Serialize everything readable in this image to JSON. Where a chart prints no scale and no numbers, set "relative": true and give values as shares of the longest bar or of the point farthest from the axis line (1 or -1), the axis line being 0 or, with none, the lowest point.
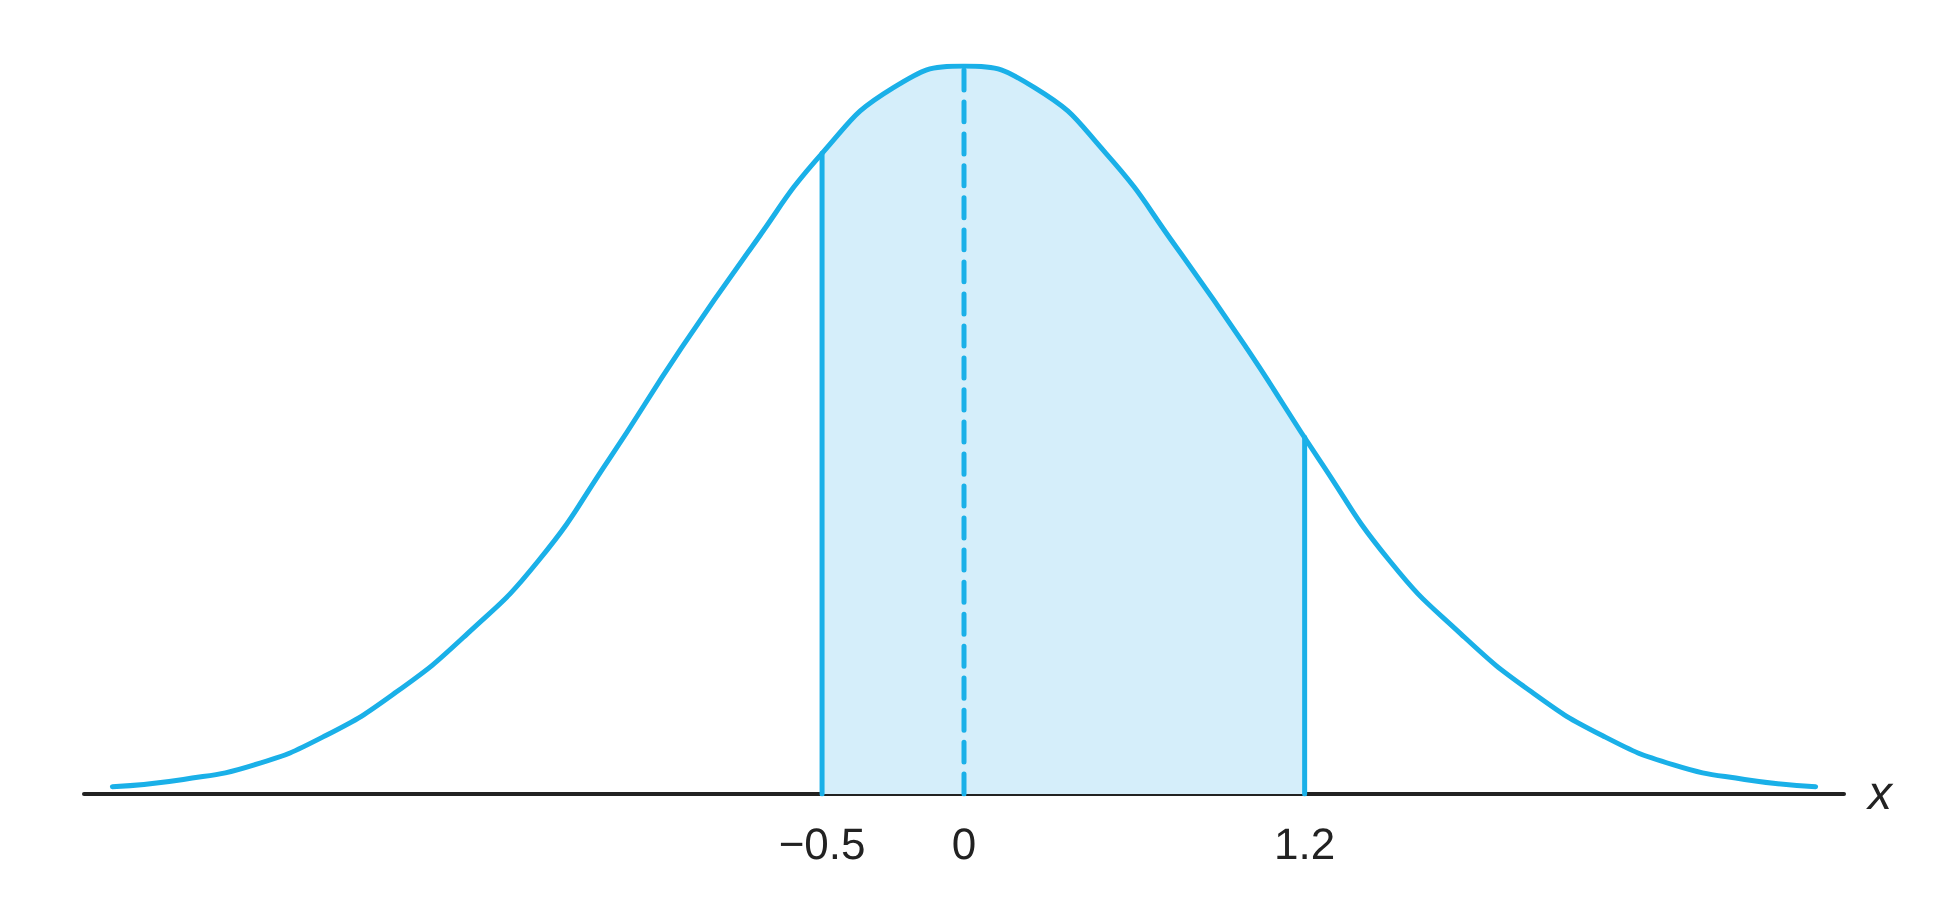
{
  "chart_data": {
    "type": "line",
    "relative": true,
    "xlabel": "x",
    "xlim": [
      -3.1,
      3.1
    ],
    "xticks": [
      -0.5,
      0,
      1.2
    ],
    "marker": "none",
    "x": [
      -3,
      -2.75,
      -2.5,
      -2.25,
      -2,
      -1.75,
      -1.5,
      -1.25,
      -1,
      -0.75,
      -0.5,
      -0.25,
      0,
      0.25,
      0.5,
      0.75,
      1,
      1.25,
      1.5,
      1.75,
      2,
      2.25,
      2.5,
      2.75,
      3
    ],
    "series": [
      {
        "color": "#1ab0e8",
        "values": [
          0.01,
          0.02,
          0.04,
          0.08,
          0.14,
          0.22,
          0.32,
          0.46,
          0.61,
          0.75,
          0.88,
          0.97,
          1,
          0.97,
          0.88,
          0.75,
          0.61,
          0.46,
          0.32,
          0.22,
          0.14,
          0.08,
          0.04,
          0.02,
          0.01
        ]
      },
      {
        "type": "area",
        "color": "#d5eefa",
        "x": [
          -0.5,
          -0.25,
          0,
          0.25,
          0.5,
          0.75,
          1,
          1.2
        ],
        "values": [
          0.88,
          0.97,
          1,
          0.97,
          0.88,
          0.75,
          0.61,
          0.49
        ]
      },
      {
        "color": "#1ab0e8",
        "x": [
          -0.5,
          -0.5
        ],
        "values": [
          0,
          0.88
        ]
      },
      {
        "color": "#1ab0e8",
        "x": [
          1.2,
          1.2
        ],
        "values": [
          0,
          0.49
        ]
      },
      {
        "color": "#1ab0e8",
        "line_style": "dashed",
        "x": [
          0,
          0
        ],
        "values": [
          0,
          1
        ]
      }
    ]
  }
}
